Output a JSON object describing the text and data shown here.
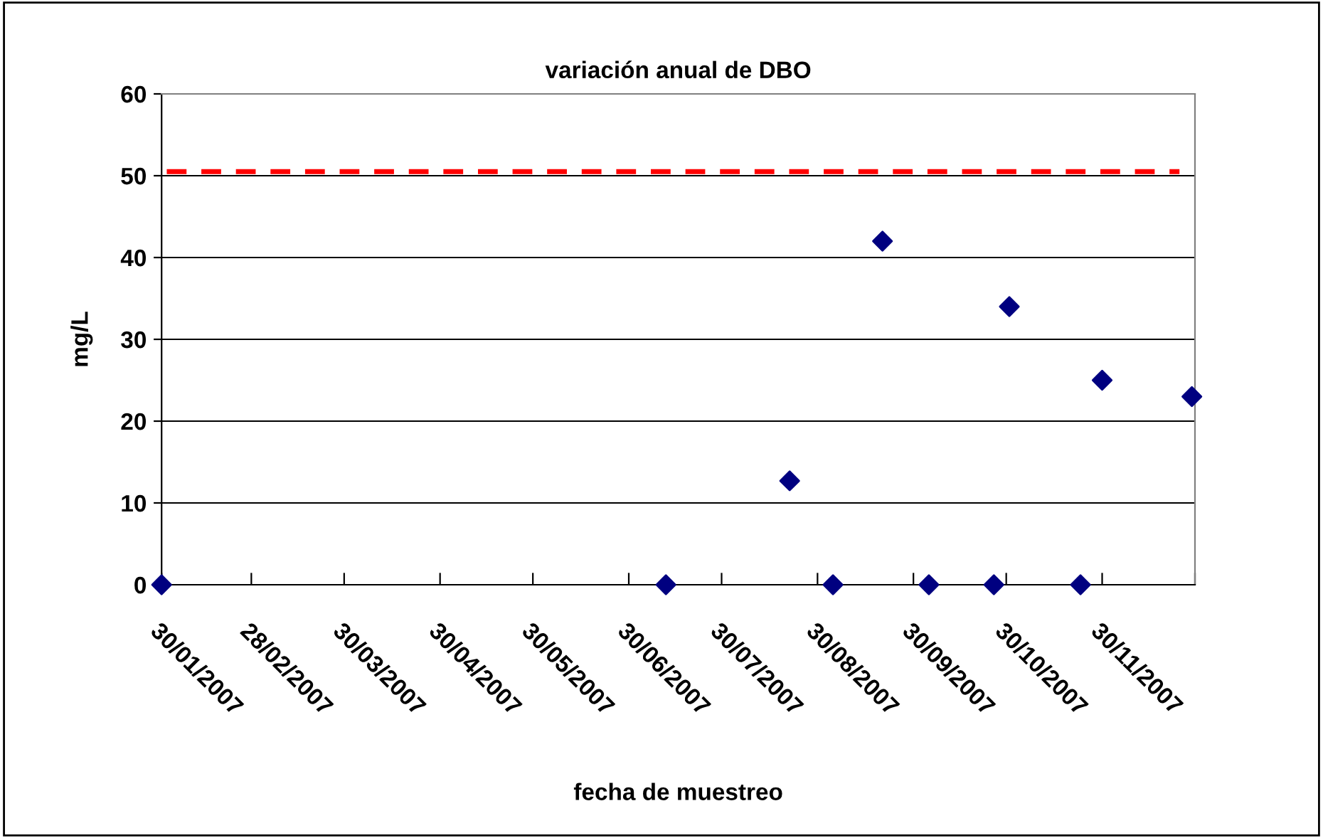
{
  "chart_data": {
    "type": "scatter",
    "title": "variación anual de DBO",
    "xlabel": "fecha de muestreo",
    "ylabel": "mg/L",
    "x": [
      "2007-01-30",
      "2007-07-12",
      "2007-08-21",
      "2007-09-04",
      "2007-09-20",
      "2007-10-05",
      "2007-10-26",
      "2007-10-31",
      "2007-11-23",
      "2007-11-30",
      "2007-12-29"
    ],
    "series": [
      {
        "color": "#000080",
        "values": [
          0,
          0,
          12.7,
          0,
          42,
          0,
          0,
          34,
          0,
          25,
          23
        ]
      }
    ],
    "marker": "diamond",
    "grid": "y",
    "legend": false,
    "xlim": [
      "2007-01-30",
      "2007-12-30"
    ],
    "xticks": [
      {
        "value": "2007-01-30",
        "label": "30/01/2007"
      },
      {
        "value": "2007-02-28",
        "label": "28/02/2007"
      },
      {
        "value": "2007-03-30",
        "label": "30/03/2007"
      },
      {
        "value": "2007-04-30",
        "label": "30/04/2007"
      },
      {
        "value": "2007-05-30",
        "label": "30/05/2007"
      },
      {
        "value": "2007-06-30",
        "label": "30/06/2007"
      },
      {
        "value": "2007-07-30",
        "label": "30/07/2007"
      },
      {
        "value": "2007-08-30",
        "label": "30/08/2007"
      },
      {
        "value": "2007-09-30",
        "label": "30/09/2007"
      },
      {
        "value": "2007-10-30",
        "label": "30/10/2007"
      },
      {
        "value": "2007-11-30",
        "label": "30/11/2007"
      },
      {
        "value": "2007-12-30",
        "label": null
      }
    ],
    "ylim": [
      0,
      60
    ],
    "yticks": [
      0,
      10,
      20,
      30,
      40,
      50,
      60
    ],
    "ref_lines": [
      {
        "axis": "y",
        "value": 50.5,
        "color": "#ff0000",
        "line_style": "dashed"
      }
    ]
  }
}
